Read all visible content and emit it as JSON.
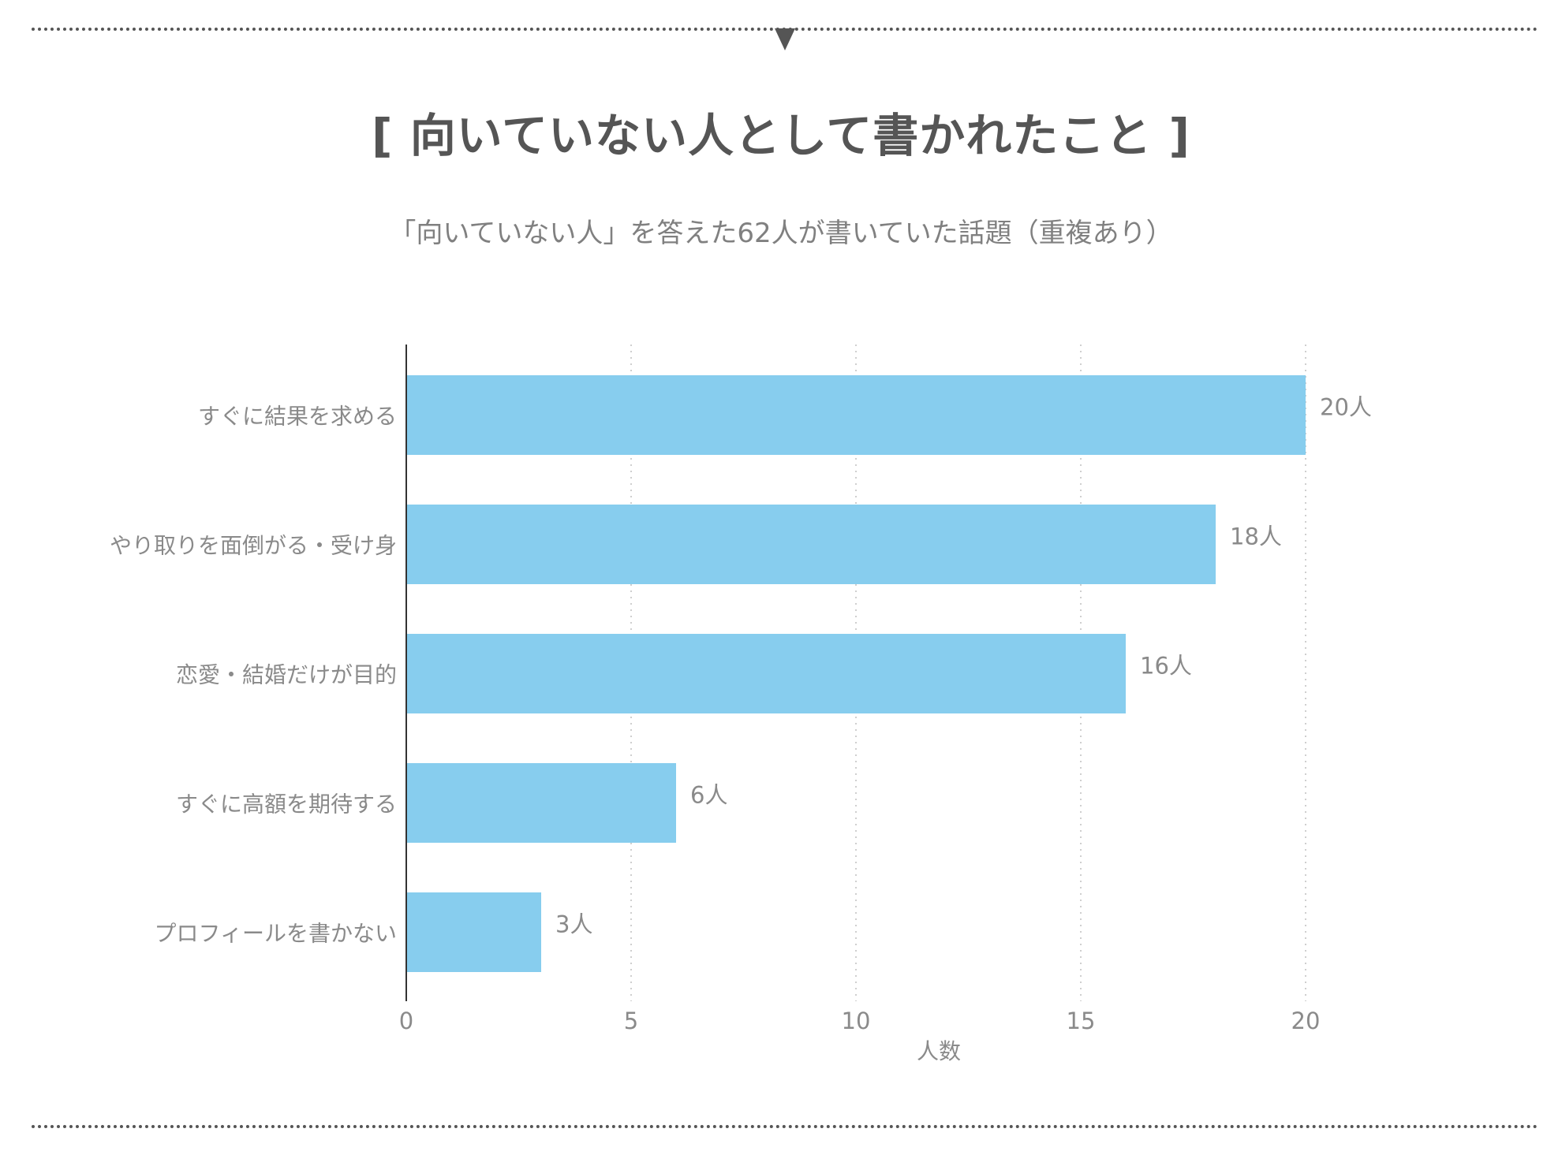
{
  "header": {
    "title": "[ 向いていない人として書かれたこと ]",
    "subtitle": "「向いていない人」を答えた62人が書いていた話題（重複あり）"
  },
  "chart_data": {
    "type": "bar",
    "orientation": "horizontal",
    "categories": [
      "すぐに結果を求める",
      "やり取りを面倒がる・受け身",
      "恋愛・結婚だけが目的",
      "すぐに高額を期待する",
      "プロフィールを書かない"
    ],
    "values": [
      20,
      18,
      16,
      6,
      3
    ],
    "value_labels": [
      "20人",
      "18人",
      "16人",
      "6人",
      "3人"
    ],
    "xlabel": "人数",
    "xlim": [
      0,
      20
    ],
    "x_ticks": [
      "0",
      "5",
      "10",
      "15",
      "20"
    ],
    "grid": "vertical dotted",
    "bar_color": "#87CDEE"
  }
}
